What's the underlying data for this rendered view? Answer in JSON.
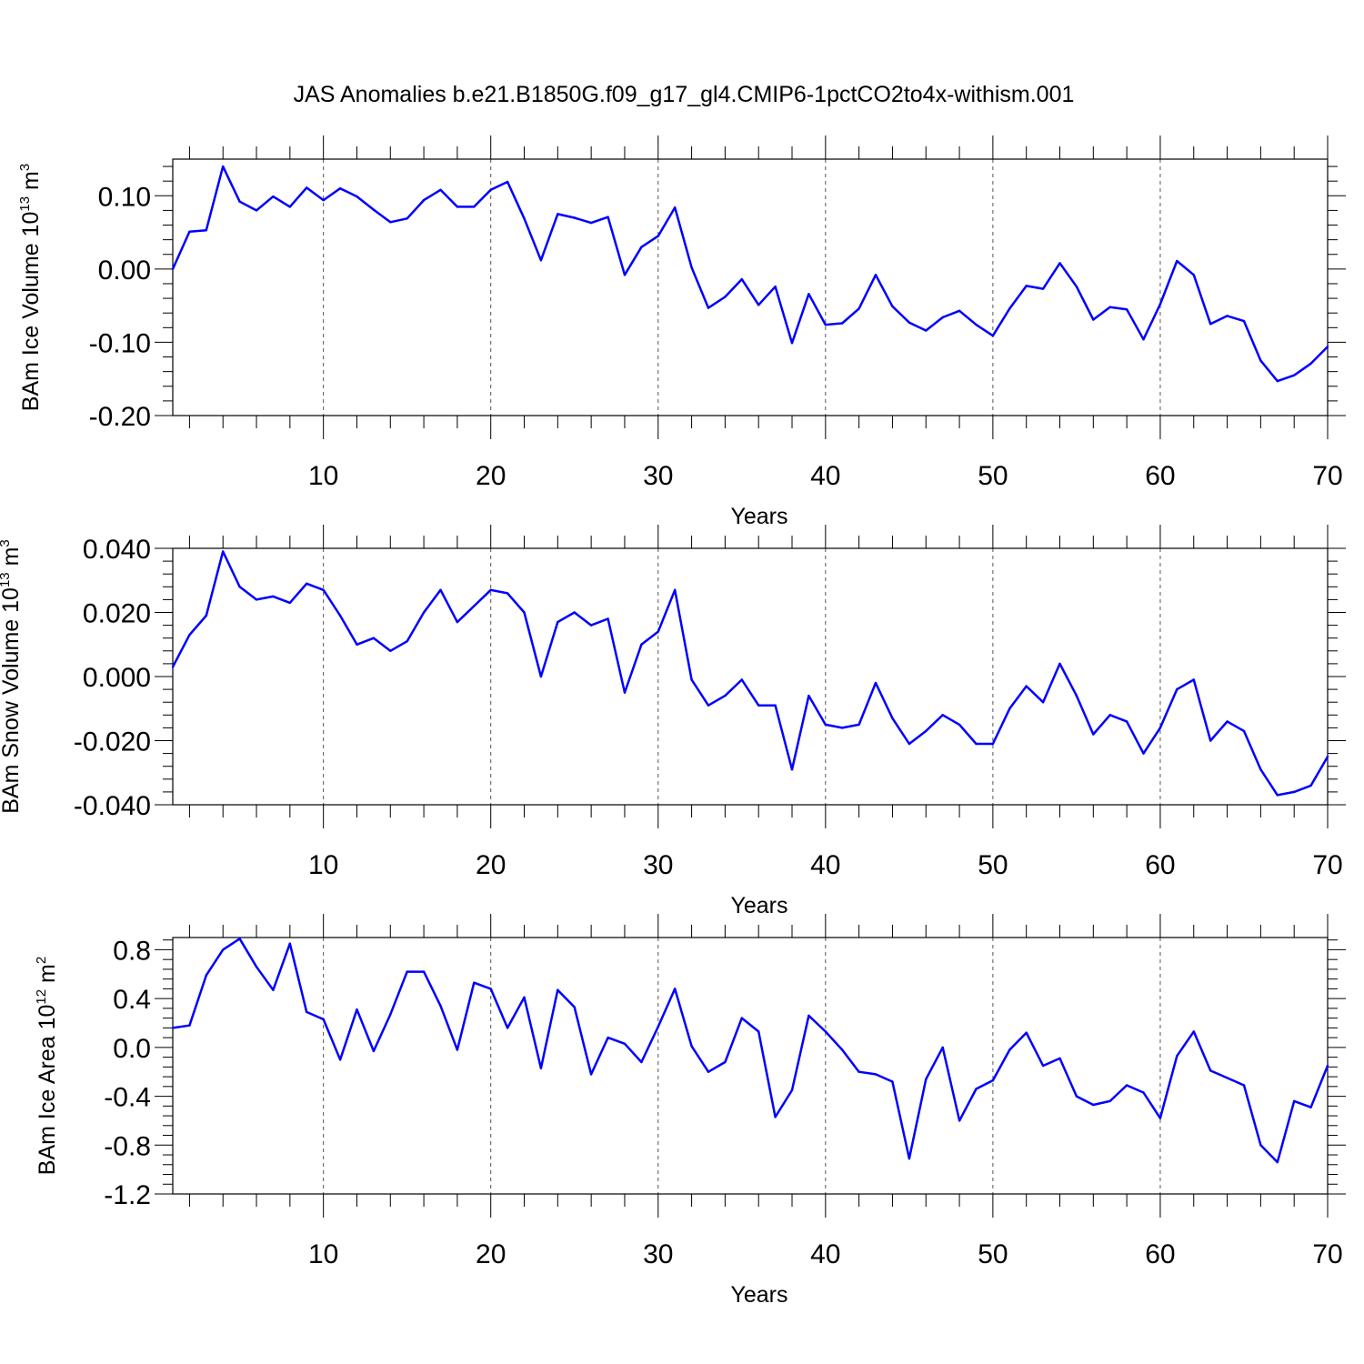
{
  "title": "JAS Anomalies b.e21.B1850G.f09_g17_gl4.CMIP6-1pctCO2to4x-withism.001",
  "colors": {
    "line": "#0000ff",
    "axes": "#000000",
    "grid": "#555555",
    "background": "#ffffff"
  },
  "chart_data": [
    {
      "type": "line",
      "title": "JAS Anomalies b.e21.B1850G.f09_g17_gl4.CMIP6-1pctCO2to4x-withism.001",
      "xlabel": "Years",
      "ylabel": {
        "text": "BAm Ice Volume 10",
        "exp": "13",
        "unit": " m",
        "unit_exp": "3"
      },
      "xlim": [
        1,
        70
      ],
      "ylim": [
        -0.2,
        0.15
      ],
      "xticks": [
        10,
        20,
        30,
        40,
        50,
        60,
        70
      ],
      "yticks": [
        -0.2,
        -0.1,
        0.0,
        0.1
      ],
      "ytick_labels": [
        "-0.20",
        "-0.10",
        "0.00",
        "0.10"
      ],
      "grid": "vertical dashed at major x ticks",
      "x": [
        1,
        2,
        3,
        4,
        5,
        6,
        7,
        8,
        9,
        10,
        11,
        12,
        13,
        14,
        15,
        16,
        17,
        18,
        19,
        20,
        21,
        22,
        23,
        24,
        25,
        26,
        27,
        28,
        29,
        30,
        31,
        32,
        33,
        34,
        35,
        36,
        37,
        38,
        39,
        40,
        41,
        42,
        43,
        44,
        45,
        46,
        47,
        48,
        49,
        50,
        51,
        52,
        53,
        54,
        55,
        56,
        57,
        58,
        59,
        60,
        61,
        62,
        63,
        64,
        65,
        66,
        67,
        68,
        69,
        70
      ],
      "y": [
        0.0,
        0.051,
        0.053,
        0.14,
        0.092,
        0.08,
        0.099,
        0.085,
        0.111,
        0.094,
        0.11,
        0.099,
        0.081,
        0.064,
        0.069,
        0.094,
        0.108,
        0.085,
        0.085,
        0.108,
        0.119,
        0.069,
        0.012,
        0.075,
        0.07,
        0.063,
        0.071,
        -0.008,
        0.03,
        0.045,
        0.084,
        0.002,
        -0.053,
        -0.038,
        -0.014,
        -0.049,
        -0.024,
        -0.101,
        -0.034,
        -0.076,
        -0.074,
        -0.054,
        -0.008,
        -0.051,
        -0.073,
        -0.084,
        -0.066,
        -0.057,
        -0.076,
        -0.091,
        -0.054,
        -0.023,
        -0.027,
        0.008,
        -0.024,
        -0.069,
        -0.052,
        -0.055,
        -0.096,
        -0.048,
        0.011,
        -0.008,
        -0.075,
        -0.064,
        -0.071,
        -0.125,
        -0.153,
        -0.145,
        -0.129,
        -0.106
      ]
    },
    {
      "type": "line",
      "xlabel": "Years",
      "ylabel": {
        "text": "BAm Snow Volume 10",
        "exp": "13",
        "unit": " m",
        "unit_exp": "3"
      },
      "xlim": [
        1,
        70
      ],
      "ylim": [
        -0.04,
        0.04
      ],
      "xticks": [
        10,
        20,
        30,
        40,
        50,
        60,
        70
      ],
      "yticks": [
        -0.04,
        -0.02,
        0.0,
        0.02,
        0.04
      ],
      "ytick_labels": [
        "-0.040",
        "-0.020",
        "0.000",
        "0.020",
        "0.040"
      ],
      "grid": "vertical dashed at major x ticks",
      "x": [
        1,
        2,
        3,
        4,
        5,
        6,
        7,
        8,
        9,
        10,
        11,
        12,
        13,
        14,
        15,
        16,
        17,
        18,
        19,
        20,
        21,
        22,
        23,
        24,
        25,
        26,
        27,
        28,
        29,
        30,
        31,
        32,
        33,
        34,
        35,
        36,
        37,
        38,
        39,
        40,
        41,
        42,
        43,
        44,
        45,
        46,
        47,
        48,
        49,
        50,
        51,
        52,
        53,
        54,
        55,
        56,
        57,
        58,
        59,
        60,
        61,
        62,
        63,
        64,
        65,
        66,
        67,
        68,
        69,
        70
      ],
      "y": [
        0.003,
        0.013,
        0.019,
        0.039,
        0.028,
        0.024,
        0.025,
        0.023,
        0.029,
        0.027,
        0.019,
        0.01,
        0.012,
        0.008,
        0.011,
        0.02,
        0.027,
        0.017,
        0.022,
        0.027,
        0.026,
        0.02,
        0.0,
        0.017,
        0.02,
        0.016,
        0.018,
        -0.005,
        0.01,
        0.014,
        0.027,
        -0.001,
        -0.009,
        -0.006,
        -0.001,
        -0.009,
        -0.009,
        -0.029,
        -0.006,
        -0.015,
        -0.016,
        -0.015,
        -0.002,
        -0.013,
        -0.021,
        -0.017,
        -0.012,
        -0.015,
        -0.021,
        -0.021,
        -0.01,
        -0.003,
        -0.008,
        0.004,
        -0.006,
        -0.018,
        -0.012,
        -0.014,
        -0.024,
        -0.016,
        -0.004,
        -0.001,
        -0.02,
        -0.014,
        -0.017,
        -0.029,
        -0.037,
        -0.036,
        -0.034,
        -0.025
      ]
    },
    {
      "type": "line",
      "xlabel": "Years",
      "ylabel": {
        "text": "BAm Ice Area 10",
        "exp": "12",
        "unit": " m",
        "unit_exp": "2"
      },
      "xlim": [
        1,
        70
      ],
      "ylim": [
        -1.2,
        0.9
      ],
      "xticks": [
        10,
        20,
        30,
        40,
        50,
        60,
        70
      ],
      "yticks": [
        -1.2,
        -0.8,
        -0.4,
        0.0,
        0.4,
        0.8
      ],
      "ytick_labels": [
        "-1.2",
        "-0.8",
        "-0.4",
        "0.0",
        "0.4",
        "0.8"
      ],
      "grid": "vertical dashed at major x ticks",
      "x": [
        1,
        2,
        3,
        4,
        5,
        6,
        7,
        8,
        9,
        10,
        11,
        12,
        13,
        14,
        15,
        16,
        17,
        18,
        19,
        20,
        21,
        22,
        23,
        24,
        25,
        26,
        27,
        28,
        29,
        30,
        31,
        32,
        33,
        34,
        35,
        36,
        37,
        38,
        39,
        40,
        41,
        42,
        43,
        44,
        45,
        46,
        47,
        48,
        49,
        50,
        51,
        52,
        53,
        54,
        55,
        56,
        57,
        58,
        59,
        60,
        61,
        62,
        63,
        64,
        65,
        66,
        67,
        68,
        69,
        70
      ],
      "y": [
        0.16,
        0.18,
        0.59,
        0.8,
        0.89,
        0.66,
        0.47,
        0.85,
        0.29,
        0.23,
        -0.1,
        0.31,
        -0.03,
        0.27,
        0.62,
        0.62,
        0.34,
        -0.02,
        0.53,
        0.48,
        0.16,
        0.41,
        -0.17,
        0.47,
        0.33,
        -0.22,
        0.08,
        0.03,
        -0.12,
        0.17,
        0.48,
        0.01,
        -0.2,
        -0.12,
        0.24,
        0.13,
        -0.57,
        -0.35,
        0.26,
        0.13,
        -0.02,
        -0.2,
        -0.22,
        -0.28,
        -0.91,
        -0.26,
        0.0,
        -0.6,
        -0.34,
        -0.27,
        -0.02,
        0.12,
        -0.15,
        -0.09,
        -0.4,
        -0.47,
        -0.44,
        -0.31,
        -0.37,
        -0.58,
        -0.07,
        0.13,
        -0.19,
        -0.25,
        -0.31,
        -0.8,
        -0.94,
        -0.44,
        -0.49,
        -0.15
      ]
    }
  ]
}
